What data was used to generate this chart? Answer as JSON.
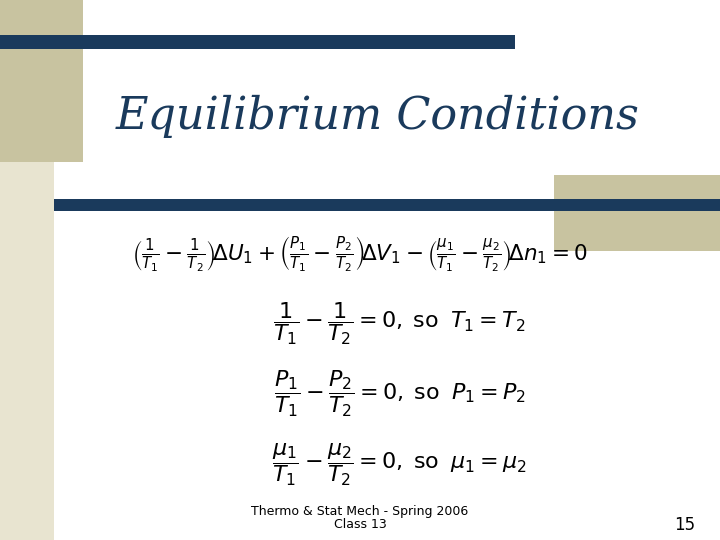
{
  "title": "Equilibrium Conditions",
  "title_color": "#1a3a5c",
  "title_fontsize": 32,
  "bg_color": "#ffffff",
  "slide_bg": "#e8e4d0",
  "dark_bar_color": "#1a3a5c",
  "tan_rect_color": "#c8c3a0",
  "footer_line1": "Thermo & Stat Mech - Spring 2006",
  "footer_line2": "Class 13",
  "page_number": "15",
  "eq1": "$\\left(\\frac{1}{T_1} - \\frac{1}{T_2}\\right)\\!\\Delta U_1 + \\left(\\frac{P_1}{T_1} - \\frac{P_2}{T_2}\\right)\\!\\Delta V_1 - \\left(\\frac{\\mu_1}{T_1} - \\frac{\\mu_2}{T_2}\\right)\\!\\Delta n_1 = 0$",
  "eq2": "$\\dfrac{1}{T_1} - \\dfrac{1}{T_2} = 0, \\; \\mathrm{so} \\;\\; T_1 = T_2$",
  "eq3": "$\\dfrac{P_1}{T_1} - \\dfrac{P_2}{T_2} = 0, \\; \\mathrm{so} \\;\\; P_1 = P_2$",
  "eq4": "$\\dfrac{\\mu_1}{T_1} - \\dfrac{\\mu_2}{T_2} = 0, \\; \\mathrm{so} \\;\\; \\mu_1 = \\mu_2$"
}
